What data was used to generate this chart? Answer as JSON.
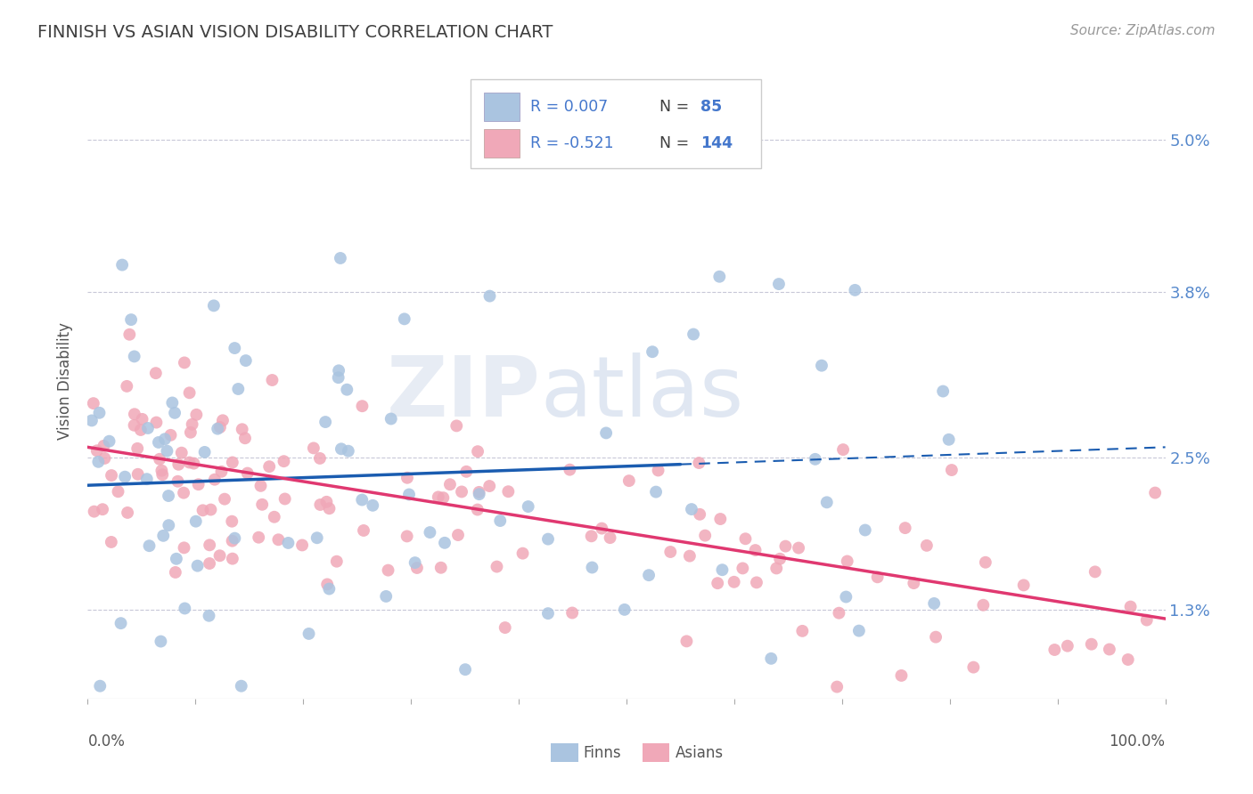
{
  "title": "FINNISH VS ASIAN VISION DISABILITY CORRELATION CHART",
  "source": "Source: ZipAtlas.com",
  "ylabel": "Vision Disability",
  "xlim": [
    0.0,
    100.0
  ],
  "ylim": [
    0.006,
    0.056
  ],
  "yticks": [
    0.013,
    0.025,
    0.038,
    0.05
  ],
  "ytick_labels": [
    "1.3%",
    "2.5%",
    "3.8%",
    "5.0%"
  ],
  "legend_R1": "R = 0.007",
  "legend_N1": "N =  85",
  "legend_R2": "R = -0.521",
  "legend_N2": "N = 144",
  "finn_color": "#aac4e0",
  "asian_color": "#f0a8b8",
  "finn_line_color": "#1a5cb0",
  "asian_line_color": "#e03870",
  "watermark_zip": "ZIP",
  "watermark_atlas": "atlas",
  "background_color": "#ffffff",
  "grid_color": "#c8c8d8",
  "finn_intercept": 0.0228,
  "finn_slope": 3e-05,
  "asian_intercept": 0.0258,
  "asian_slope": -0.000135,
  "finn_line_end_x": 55,
  "asian_line_end_x": 100,
  "title_color": "#404040",
  "source_color": "#999999",
  "axis_label_color": "#5588cc",
  "legend_text_color": "#404040",
  "legend_value_color": "#4477cc"
}
